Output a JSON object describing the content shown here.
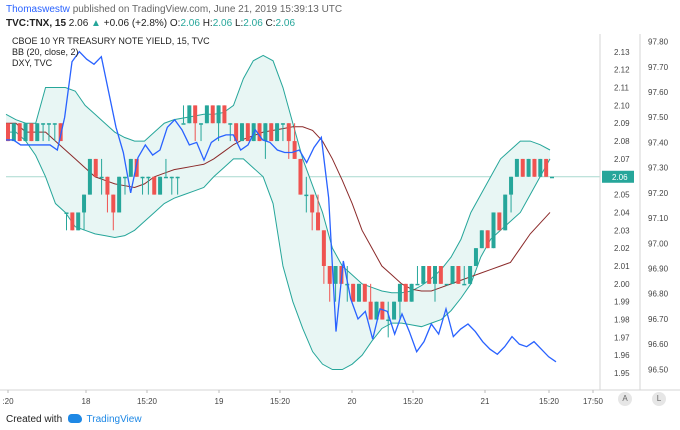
{
  "header": {
    "author": "Thomaswestw",
    "published": "published on TradingView.com, June 21, 2019 15:39:13 UTC",
    "symbol": "TVC:TNX, 15",
    "last": "2.06",
    "change": "+0.06 (+2.8%)",
    "ohlc": [
      {
        "label": "O:",
        "value": "2.06"
      },
      {
        "label": "H:",
        "value": "2.06"
      },
      {
        "label": "L:",
        "value": "2.06"
      },
      {
        "label": "C:",
        "value": "2.06"
      }
    ]
  },
  "legend": {
    "line1": "CBOE 10 YR TREASURY NOTE YIELD, 15, TVC",
    "line2": "BB (20, close, 2)",
    "line3": "DXY, TVC"
  },
  "footer": {
    "created_with": "Created with",
    "brand": "TradingView"
  },
  "buttons": {
    "auto": "A",
    "log": "L"
  },
  "colors": {
    "up": "#26a69a",
    "down": "#ef5350",
    "basis": "#8b2a2a",
    "band": "#26a69a",
    "fill": "#e8f6f4",
    "dxy": "#2962ff",
    "gridline": "#a9d9cf"
  },
  "chart_data": {
    "type": "candlestick",
    "title": "CBOE 10 YR TREASURY NOTE YIELD, 15, TVC",
    "x_ticks": [
      ":20",
      "18",
      "15:20",
      "19",
      "15:20",
      "20",
      "15:20",
      "21",
      "15:20",
      "17:50"
    ],
    "y_left_ticks": [
      "2.13",
      "2.12",
      "2.11",
      "2.10",
      "2.09",
      "2.08",
      "2.07",
      "2.06",
      "2.05",
      "2.04",
      "2.03",
      "2.02",
      "2.01",
      "2.00",
      "1.99",
      "1.98",
      "1.97",
      "1.96",
      "1.95"
    ],
    "y_right_ticks": [
      "97.80",
      "97.70",
      "97.60",
      "97.50",
      "97.40",
      "97.30",
      "97.20",
      "97.10",
      "97.00",
      "96.90",
      "96.80",
      "96.70",
      "96.60",
      "96.50"
    ],
    "ylim_left": [
      1.945,
      2.14
    ],
    "ylim_right": [
      96.45,
      97.83
    ],
    "current_level": 2.06,
    "candles": [
      [
        2.09,
        2.09,
        2.08,
        2.08
      ],
      [
        2.08,
        2.09,
        2.08,
        2.09
      ],
      [
        2.09,
        2.09,
        2.08,
        2.08
      ],
      [
        2.08,
        2.09,
        2.08,
        2.09
      ],
      [
        2.09,
        2.09,
        2.08,
        2.08
      ],
      [
        2.08,
        2.09,
        2.08,
        2.09
      ],
      [
        2.09,
        2.09,
        2.08,
        2.09
      ],
      [
        2.09,
        2.09,
        2.08,
        2.09
      ],
      [
        2.09,
        2.09,
        2.08,
        2.09
      ],
      [
        2.09,
        2.09,
        2.08,
        2.08
      ],
      [
        2.04,
        2.04,
        2.03,
        2.04
      ],
      [
        2.04,
        2.04,
        2.03,
        2.03
      ],
      [
        2.03,
        2.04,
        2.03,
        2.04
      ],
      [
        2.04,
        2.05,
        2.03,
        2.05
      ],
      [
        2.05,
        2.07,
        2.05,
        2.07
      ],
      [
        2.07,
        2.07,
        2.06,
        2.06
      ],
      [
        2.06,
        2.07,
        2.05,
        2.06
      ],
      [
        2.06,
        2.06,
        2.04,
        2.05
      ],
      [
        2.05,
        2.05,
        2.03,
        2.04
      ],
      [
        2.04,
        2.06,
        2.04,
        2.06
      ],
      [
        2.06,
        2.06,
        2.05,
        2.06
      ],
      [
        2.06,
        2.07,
        2.06,
        2.07
      ],
      [
        2.07,
        2.07,
        2.06,
        2.06
      ],
      [
        2.06,
        2.06,
        2.05,
        2.06
      ],
      [
        2.06,
        2.06,
        2.05,
        2.06
      ],
      [
        2.06,
        2.06,
        2.05,
        2.05
      ],
      [
        2.05,
        2.06,
        2.05,
        2.06
      ],
      [
        2.06,
        2.07,
        2.06,
        2.06
      ],
      [
        2.06,
        2.06,
        2.05,
        2.06
      ],
      [
        2.06,
        2.06,
        2.05,
        2.06
      ],
      [
        2.09,
        2.1,
        2.09,
        2.09
      ],
      [
        2.09,
        2.1,
        2.09,
        2.1
      ],
      [
        2.1,
        2.1,
        2.08,
        2.09
      ],
      [
        2.09,
        2.09,
        2.08,
        2.09
      ],
      [
        2.09,
        2.1,
        2.09,
        2.1
      ],
      [
        2.1,
        2.1,
        2.09,
        2.09
      ],
      [
        2.09,
        2.1,
        2.08,
        2.1
      ],
      [
        2.1,
        2.1,
        2.09,
        2.09
      ],
      [
        2.09,
        2.09,
        2.08,
        2.09
      ],
      [
        2.09,
        2.09,
        2.08,
        2.08
      ],
      [
        2.08,
        2.09,
        2.08,
        2.09
      ],
      [
        2.09,
        2.09,
        2.08,
        2.08
      ],
      [
        2.08,
        2.09,
        2.08,
        2.09
      ],
      [
        2.09,
        2.09,
        2.08,
        2.08
      ],
      [
        2.08,
        2.09,
        2.07,
        2.09
      ],
      [
        2.09,
        2.09,
        2.08,
        2.08
      ],
      [
        2.08,
        2.09,
        2.08,
        2.09
      ],
      [
        2.09,
        2.09,
        2.08,
        2.09
      ],
      [
        2.09,
        2.09,
        2.07,
        2.08
      ],
      [
        2.08,
        2.09,
        2.07,
        2.07
      ],
      [
        2.07,
        2.07,
        2.05,
        2.05
      ],
      [
        2.05,
        2.06,
        2.04,
        2.05
      ],
      [
        2.05,
        2.05,
        2.03,
        2.04
      ],
      [
        2.04,
        2.05,
        2.03,
        2.03
      ],
      [
        2.03,
        2.03,
        2.0,
        2.01
      ],
      [
        2.01,
        2.01,
        1.99,
        2.0
      ],
      [
        2.0,
        2.01,
        1.99,
        2.01
      ],
      [
        2.01,
        2.01,
        2.0,
        2.0
      ],
      [
        2.0,
        2.01,
        1.99,
        2.0
      ],
      [
        2.0,
        2.0,
        1.99,
        1.99
      ],
      [
        1.99,
        2.0,
        1.99,
        2.0
      ],
      [
        2.0,
        2.0,
        1.99,
        1.99
      ],
      [
        1.99,
        2.0,
        1.98,
        1.98
      ],
      [
        1.98,
        1.99,
        1.98,
        1.99
      ],
      [
        1.99,
        1.99,
        1.98,
        1.98
      ],
      [
        1.98,
        1.99,
        1.97,
        1.98
      ],
      [
        1.98,
        1.99,
        1.98,
        1.99
      ],
      [
        1.99,
        2.0,
        1.98,
        2.0
      ],
      [
        2.0,
        2.0,
        1.99,
        1.99
      ],
      [
        1.99,
        2.0,
        1.99,
        2.0
      ],
      [
        2.0,
        2.01,
        2.0,
        2.0
      ],
      [
        2.0,
        2.01,
        2.0,
        2.01
      ],
      [
        2.01,
        2.01,
        2.0,
        2.0
      ],
      [
        2.0,
        2.01,
        1.99,
        2.01
      ],
      [
        2.01,
        2.01,
        2.0,
        2.0
      ],
      [
        2.0,
        2.0,
        2.0,
        2.0
      ],
      [
        2.0,
        2.01,
        2.0,
        2.01
      ],
      [
        2.01,
        2.01,
        2.0,
        2.0
      ],
      [
        2.0,
        2.01,
        2.0,
        2.0
      ],
      [
        2.0,
        2.01,
        2.0,
        2.01
      ],
      [
        2.01,
        2.02,
        2.01,
        2.02
      ],
      [
        2.02,
        2.03,
        2.02,
        2.03
      ],
      [
        2.03,
        2.03,
        2.02,
        2.02
      ],
      [
        2.02,
        2.04,
        2.02,
        2.04
      ],
      [
        2.04,
        2.04,
        2.03,
        2.03
      ],
      [
        2.03,
        2.05,
        2.03,
        2.05
      ],
      [
        2.05,
        2.06,
        2.04,
        2.06
      ],
      [
        2.06,
        2.07,
        2.06,
        2.07
      ],
      [
        2.07,
        2.07,
        2.06,
        2.06
      ],
      [
        2.06,
        2.07,
        2.06,
        2.07
      ],
      [
        2.07,
        2.07,
        2.06,
        2.06
      ],
      [
        2.06,
        2.07,
        2.06,
        2.07
      ],
      [
        2.07,
        2.07,
        2.06,
        2.06
      ],
      [
        2.06,
        2.06,
        2.06,
        2.06
      ]
    ],
    "bb_basis": [
      2.09,
      2.09,
      2.085,
      2.085,
      2.085,
      2.08,
      2.075,
      2.07,
      2.065,
      2.06,
      2.058,
      2.056,
      2.055,
      2.054,
      2.056,
      2.06,
      2.062,
      2.064,
      2.065,
      2.066,
      2.067,
      2.07,
      2.074,
      2.078,
      2.081,
      2.083,
      2.085,
      2.086,
      2.087,
      2.088,
      2.088,
      2.086,
      2.08,
      2.07,
      2.058,
      2.045,
      2.03,
      2.02,
      2.01,
      2.005,
      2.0,
      1.997,
      1.996,
      1.996,
      1.998,
      2.0,
      2.002,
      2.004,
      2.006,
      2.008,
      2.01,
      2.012,
      2.02,
      2.028,
      2.034,
      2.04
    ],
    "bb_upper": [
      2.095,
      2.092,
      2.09,
      2.09,
      2.11,
      2.11,
      2.11,
      2.108,
      2.1,
      2.095,
      2.09,
      2.085,
      2.082,
      2.08,
      2.08,
      2.085,
      2.09,
      2.092,
      2.093,
      2.094,
      2.095,
      2.095,
      2.096,
      2.1,
      2.115,
      2.125,
      2.128,
      2.125,
      2.11,
      2.09,
      2.07,
      2.055,
      2.04,
      2.02,
      2.01,
      2.005,
      2.0,
      1.998,
      1.996,
      1.995,
      1.995,
      1.996,
      1.999,
      2.003,
      2.008,
      2.015,
      2.025,
      2.04,
      2.05,
      2.06,
      2.07,
      2.075,
      2.08,
      2.08,
      2.078,
      2.075
    ],
    "bb_lower": [
      2.085,
      2.085,
      2.08,
      2.072,
      2.06,
      2.045,
      2.04,
      2.032,
      2.03,
      2.028,
      2.027,
      2.026,
      2.027,
      2.03,
      2.035,
      2.04,
      2.045,
      2.048,
      2.05,
      2.052,
      2.054,
      2.06,
      2.065,
      2.07,
      2.07,
      2.065,
      2.06,
      2.045,
      2.01,
      1.99,
      1.975,
      1.962,
      1.955,
      1.952,
      1.952,
      1.955,
      1.96,
      1.968,
      1.975,
      1.978,
      1.978,
      1.977,
      1.976,
      1.978,
      1.98,
      1.985,
      1.992,
      2.0,
      2.015,
      2.025,
      2.03,
      2.035,
      2.04,
      2.05,
      2.06,
      2.07
    ],
    "dxy": [
      97.41,
      97.41,
      97.39,
      97.39,
      97.39,
      97.39,
      97.39,
      97.37,
      97.5,
      97.72,
      97.76,
      97.73,
      97.71,
      97.74,
      97.6,
      97.46,
      97.36,
      97.2,
      97.34,
      97.39,
      97.35,
      97.37,
      97.46,
      97.49,
      97.45,
      97.39,
      97.4,
      97.33,
      97.4,
      97.42,
      97.43,
      97.43,
      97.37,
      97.39,
      97.45,
      97.41,
      97.4,
      97.37,
      97.36,
      97.36,
      97.37,
      97.32,
      97.38,
      97.42,
      97.18,
      96.65,
      96.93,
      96.78,
      96.7,
      96.73,
      96.62,
      96.74,
      96.73,
      96.64,
      96.72,
      96.65,
      96.57,
      96.61,
      96.68,
      96.64,
      96.74,
      96.63,
      96.66,
      96.68,
      96.65,
      96.61,
      96.58,
      96.56,
      96.59,
      96.63,
      96.6,
      96.59,
      96.61,
      96.58,
      96.55,
      96.53
    ]
  }
}
